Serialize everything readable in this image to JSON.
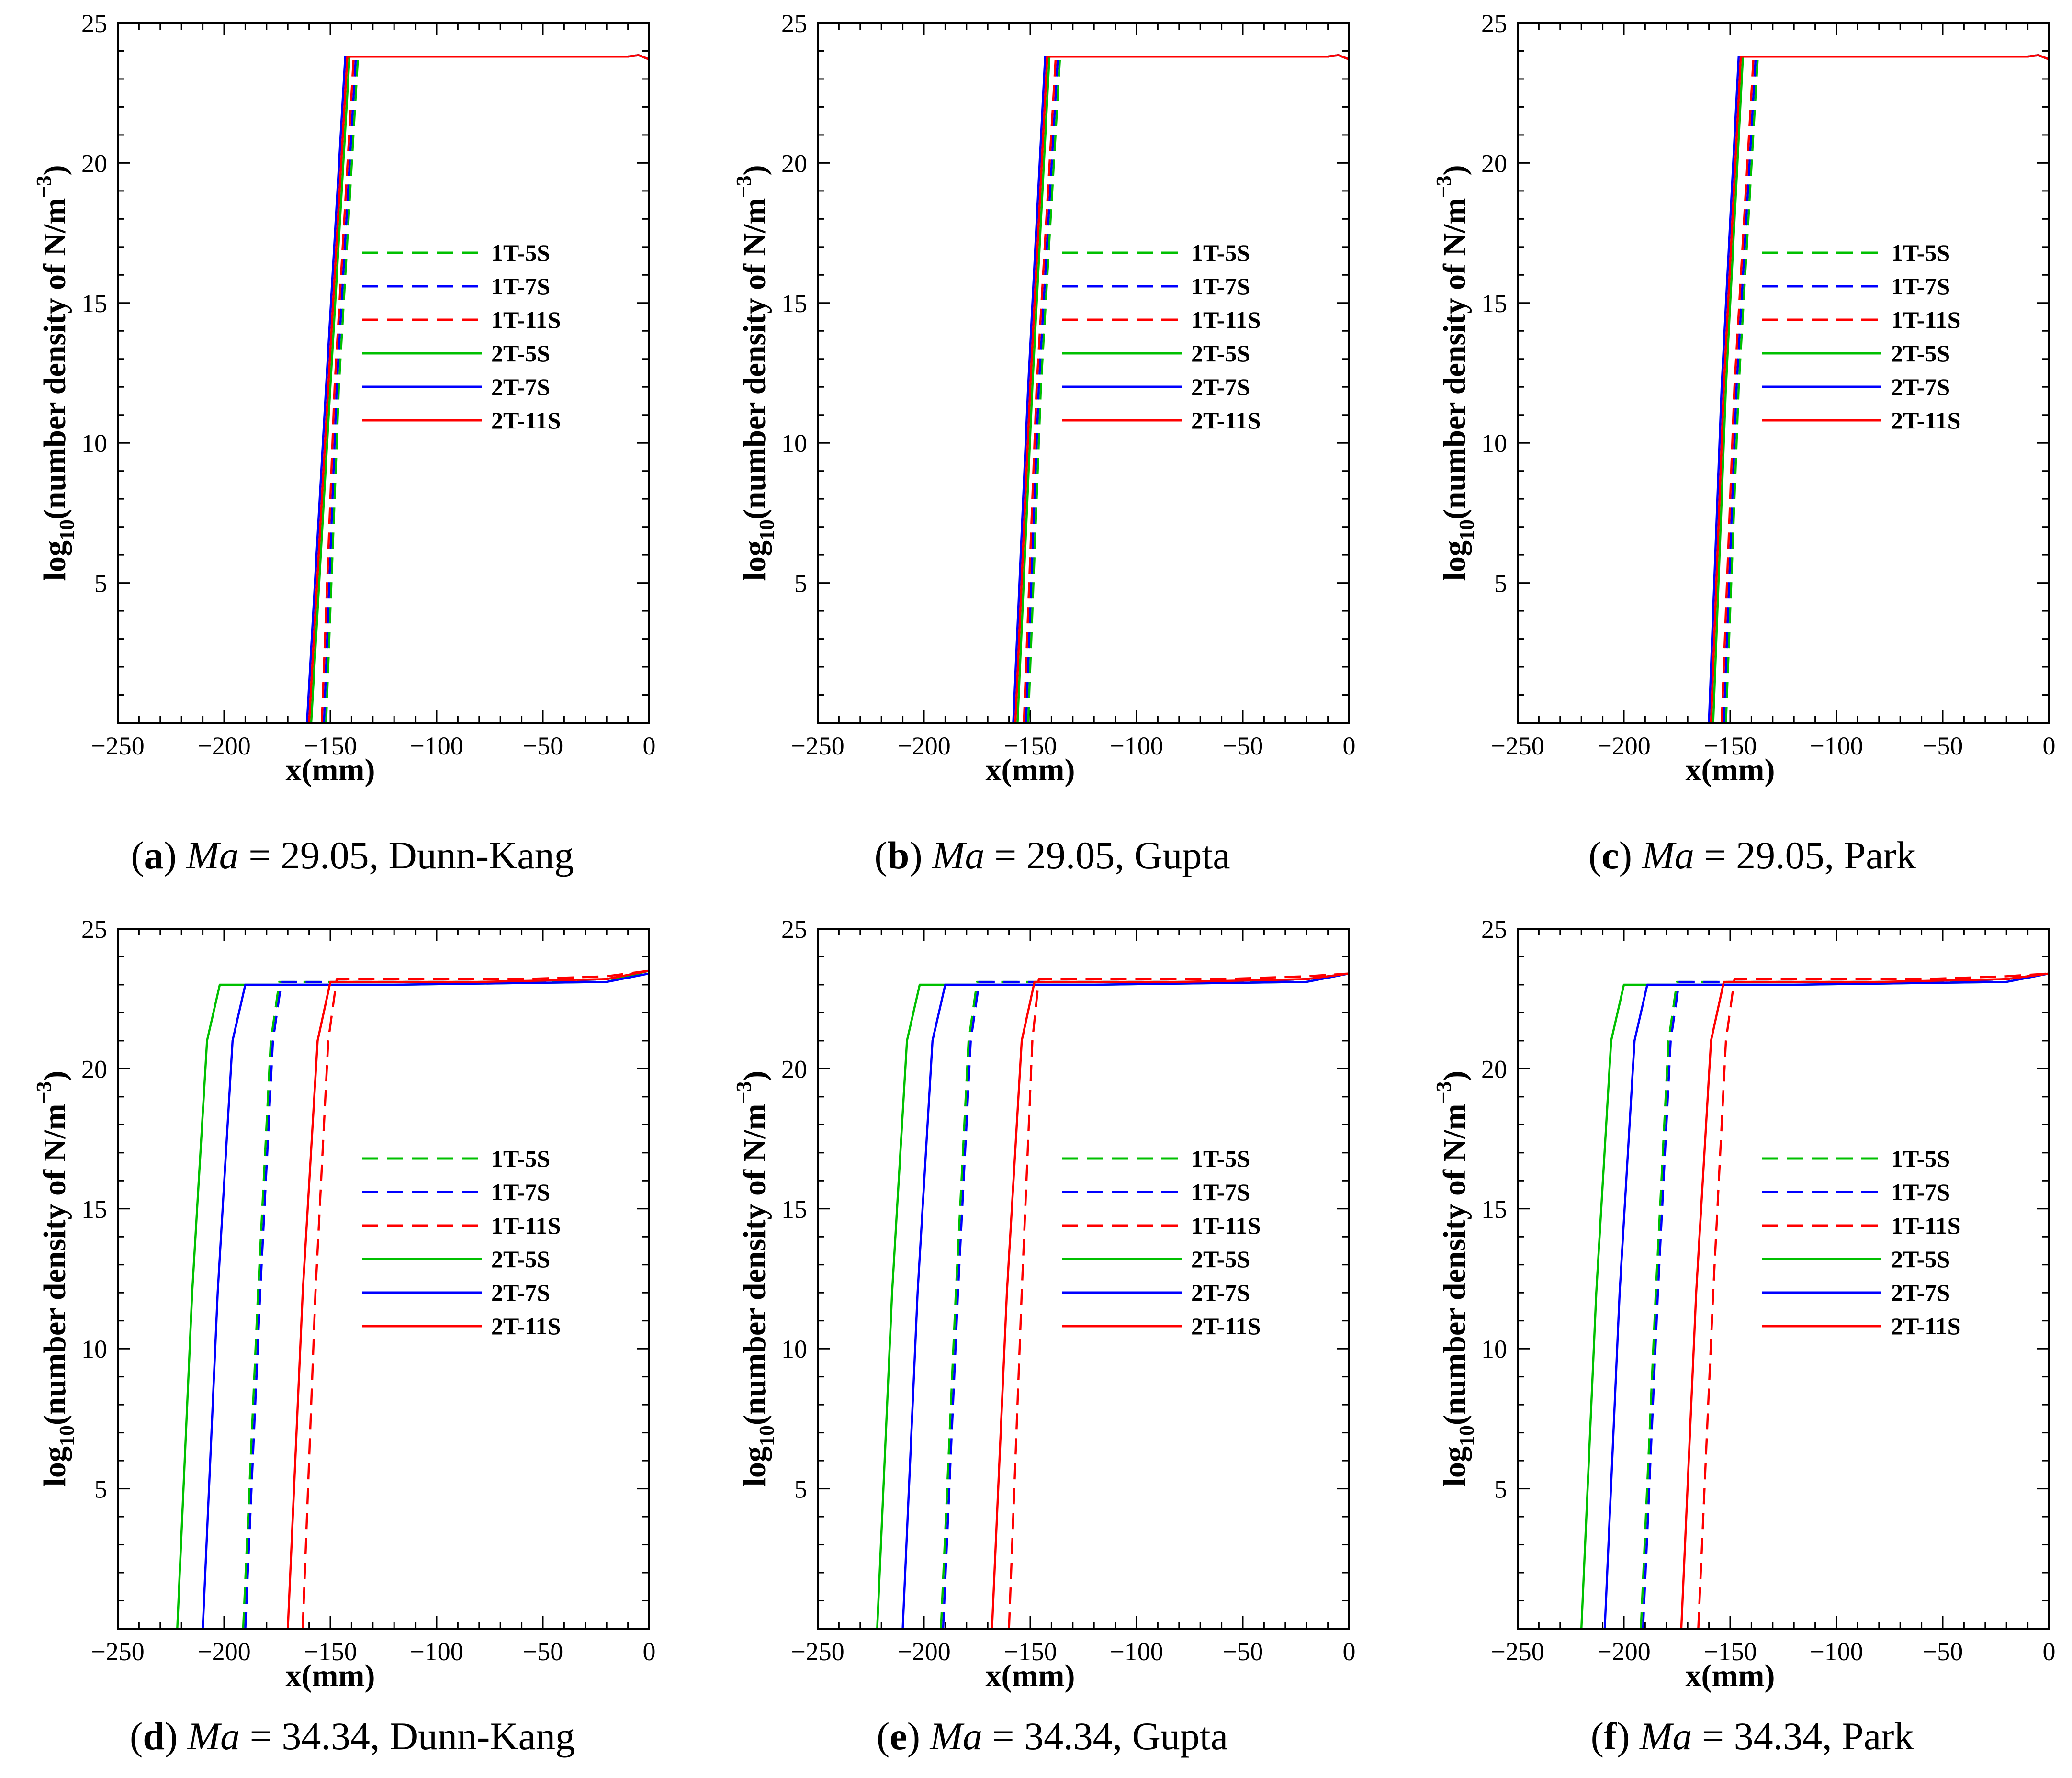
{
  "legend_labels": [
    "1T-5S",
    "1T-7S",
    "1T-11S",
    "2T-5S",
    "2T-7S",
    "2T-11S"
  ],
  "series_styles": [
    {
      "name": "1T-5S",
      "color": "#00c000",
      "dash": true
    },
    {
      "name": "1T-7S",
      "color": "#0000ff",
      "dash": true
    },
    {
      "name": "1T-11S",
      "color": "#ff0000",
      "dash": true
    },
    {
      "name": "2T-5S",
      "color": "#00c000",
      "dash": false
    },
    {
      "name": "2T-7S",
      "color": "#0000ff",
      "dash": false
    },
    {
      "name": "2T-11S",
      "color": "#ff0000",
      "dash": false
    }
  ],
  "chart_data": [
    {
      "type": "line",
      "caption": {
        "letter": "a",
        "mach": "29.05",
        "model": "Dunn-Kang"
      },
      "xlabel": "x(mm)",
      "ylabel": "log10(number density of N/m-3)",
      "xlim": [
        -250,
        0
      ],
      "ylim": [
        0,
        25
      ],
      "xticks": [
        "−250",
        "−200",
        "−150",
        "−100",
        "−50",
        "0"
      ],
      "yticks": [
        "5",
        "10",
        "15",
        "20",
        "25"
      ],
      "series": [
        {
          "name": "1T-5S",
          "x": [
            -152,
            -146,
            -137,
            -120,
            -60,
            -10,
            -5,
            0
          ],
          "y": [
            0,
            12,
            23.8,
            23.8,
            23.8,
            23.8,
            23.85,
            23.7
          ]
        },
        {
          "name": "1T-7S",
          "x": [
            -153,
            -147,
            -138,
            -120,
            -60,
            -10,
            -5,
            0
          ],
          "y": [
            0,
            12,
            23.8,
            23.8,
            23.8,
            23.8,
            23.85,
            23.7
          ]
        },
        {
          "name": "1T-11S",
          "x": [
            -154,
            -148,
            -139,
            -120,
            -60,
            -10,
            -5,
            0
          ],
          "y": [
            0,
            12,
            23.8,
            23.8,
            23.8,
            23.8,
            23.85,
            23.7
          ]
        },
        {
          "name": "2T-5S",
          "x": [
            -159,
            -150,
            -141,
            -120,
            -60,
            -10,
            -5,
            0
          ],
          "y": [
            0,
            12,
            23.8,
            23.8,
            23.8,
            23.8,
            23.85,
            23.7
          ]
        },
        {
          "name": "2T-7S",
          "x": [
            -161,
            -152,
            -143,
            -120,
            -60,
            -10,
            -5,
            0
          ],
          "y": [
            0,
            12,
            23.8,
            23.8,
            23.8,
            23.8,
            23.85,
            23.7
          ]
        },
        {
          "name": "2T-11S",
          "x": [
            -160,
            -151,
            -142,
            -120,
            -60,
            -10,
            -5,
            0
          ],
          "y": [
            0,
            12,
            23.8,
            23.8,
            23.8,
            23.8,
            23.85,
            23.7
          ]
        }
      ]
    },
    {
      "type": "line",
      "caption": {
        "letter": "b",
        "mach": "29.05",
        "model": "Gupta"
      },
      "xlabel": "x(mm)",
      "ylabel": "log10(number density of N/m-3)",
      "xlim": [
        -250,
        0
      ],
      "ylim": [
        0,
        25
      ],
      "xticks": [
        "−250",
        "−200",
        "−150",
        "−100",
        "−50",
        "0"
      ],
      "yticks": [
        "5",
        "10",
        "15",
        "20",
        "25"
      ],
      "series": [
        {
          "name": "1T-5S",
          "x": [
            -151,
            -145,
            -136,
            -120,
            -60,
            -10,
            -5,
            0
          ],
          "y": [
            0,
            12,
            23.8,
            23.8,
            23.8,
            23.8,
            23.85,
            23.7
          ]
        },
        {
          "name": "1T-7S",
          "x": [
            -152,
            -146,
            -137,
            -120,
            -60,
            -10,
            -5,
            0
          ],
          "y": [
            0,
            12,
            23.8,
            23.8,
            23.8,
            23.8,
            23.85,
            23.7
          ]
        },
        {
          "name": "1T-11S",
          "x": [
            -153,
            -147,
            -138,
            -120,
            -60,
            -10,
            -5,
            0
          ],
          "y": [
            0,
            12,
            23.8,
            23.8,
            23.8,
            23.8,
            23.85,
            23.7
          ]
        },
        {
          "name": "2T-5S",
          "x": [
            -156,
            -149,
            -141,
            -120,
            -60,
            -10,
            -5,
            0
          ],
          "y": [
            0,
            12,
            23.8,
            23.8,
            23.8,
            23.8,
            23.85,
            23.7
          ]
        },
        {
          "name": "2T-7S",
          "x": [
            -158,
            -151,
            -143,
            -120,
            -60,
            -10,
            -5,
            0
          ],
          "y": [
            0,
            12,
            23.8,
            23.8,
            23.8,
            23.8,
            23.85,
            23.7
          ]
        },
        {
          "name": "2T-11S",
          "x": [
            -157,
            -150,
            -142,
            -120,
            -60,
            -10,
            -5,
            0
          ],
          "y": [
            0,
            12,
            23.8,
            23.8,
            23.8,
            23.8,
            23.85,
            23.7
          ]
        }
      ]
    },
    {
      "type": "line",
      "caption": {
        "letter": "c",
        "mach": "29.05",
        "model": "Park"
      },
      "xlabel": "x(mm)",
      "ylabel": "log10(number density of N/m-3)",
      "xlim": [
        -250,
        0
      ],
      "ylim": [
        0,
        25
      ],
      "xticks": [
        "−250",
        "−200",
        "−150",
        "−100",
        "−50",
        "0"
      ],
      "yticks": [
        "5",
        "10",
        "15",
        "20",
        "25"
      ],
      "series": [
        {
          "name": "1T-5S",
          "x": [
            -152,
            -146,
            -137,
            -120,
            -60,
            -10,
            -5,
            0
          ],
          "y": [
            0,
            12,
            23.8,
            23.8,
            23.8,
            23.8,
            23.85,
            23.7
          ]
        },
        {
          "name": "1T-7S",
          "x": [
            -153,
            -147,
            -138,
            -120,
            -60,
            -10,
            -5,
            0
          ],
          "y": [
            0,
            12,
            23.8,
            23.8,
            23.8,
            23.8,
            23.85,
            23.7
          ]
        },
        {
          "name": "1T-11S",
          "x": [
            -154,
            -148,
            -139,
            -120,
            -60,
            -10,
            -5,
            0
          ],
          "y": [
            0,
            12,
            23.8,
            23.8,
            23.8,
            23.8,
            23.85,
            23.7
          ]
        },
        {
          "name": "2T-5S",
          "x": [
            -158,
            -152,
            -144,
            -120,
            -60,
            -10,
            -5,
            0
          ],
          "y": [
            0,
            12,
            23.8,
            23.8,
            23.8,
            23.8,
            23.85,
            23.7
          ]
        },
        {
          "name": "2T-7S",
          "x": [
            -160,
            -154,
            -146,
            -120,
            -60,
            -10,
            -5,
            0
          ],
          "y": [
            0,
            12,
            23.8,
            23.8,
            23.8,
            23.8,
            23.85,
            23.7
          ]
        },
        {
          "name": "2T-11S",
          "x": [
            -159,
            -153,
            -145,
            -120,
            -60,
            -10,
            -5,
            0
          ],
          "y": [
            0,
            12,
            23.8,
            23.8,
            23.8,
            23.8,
            23.85,
            23.7
          ]
        }
      ]
    },
    {
      "type": "line",
      "caption": {
        "letter": "d",
        "mach": "34.34",
        "model": "Dunn-Kang"
      },
      "xlabel": "x(mm)",
      "ylabel": "log10(number density of N/m-3)",
      "xlim": [
        -250,
        0
      ],
      "ylim": [
        0,
        25
      ],
      "xticks": [
        "−250",
        "−200",
        "−150",
        "−100",
        "−50",
        "0"
      ],
      "yticks": [
        "5",
        "10",
        "15",
        "20",
        "25"
      ],
      "series": [
        {
          "name": "1T-5S",
          "x": [
            -191,
            -184,
            -178,
            -174,
            -120,
            -60,
            -20,
            0
          ],
          "y": [
            0,
            12,
            21,
            23.1,
            23.1,
            23.1,
            23.2,
            23.5
          ]
        },
        {
          "name": "1T-7S",
          "x": [
            -190,
            -183,
            -177,
            -173,
            -120,
            -60,
            -20,
            0
          ],
          "y": [
            0,
            12,
            21,
            23.1,
            23.1,
            23.1,
            23.2,
            23.5
          ]
        },
        {
          "name": "1T-11S",
          "x": [
            -163,
            -157,
            -151,
            -147,
            -120,
            -60,
            -20,
            0
          ],
          "y": [
            0,
            12,
            21,
            23.2,
            23.2,
            23.2,
            23.3,
            23.5
          ]
        },
        {
          "name": "2T-5S",
          "x": [
            -222,
            -215,
            -208,
            -202,
            -190,
            -120,
            -20,
            0
          ],
          "y": [
            0,
            12,
            21,
            23.0,
            23.0,
            23.0,
            23.1,
            23.5
          ]
        },
        {
          "name": "2T-7S",
          "x": [
            -210,
            -203,
            -196,
            -190,
            -170,
            -120,
            -20,
            0
          ],
          "y": [
            0,
            12,
            21,
            23.0,
            23.0,
            23.0,
            23.1,
            23.4
          ]
        },
        {
          "name": "2T-11S",
          "x": [
            -170,
            -163,
            -156,
            -150,
            -130,
            -80,
            -20,
            0
          ],
          "y": [
            0,
            12,
            21,
            23.1,
            23.1,
            23.1,
            23.2,
            23.5
          ]
        }
      ]
    },
    {
      "type": "line",
      "caption": {
        "letter": "e",
        "mach": "34.34",
        "model": "Gupta"
      },
      "xlabel": "x(mm)",
      "ylabel": "log10(number density of N/m-3)",
      "xlim": [
        -250,
        0
      ],
      "ylim": [
        0,
        25
      ],
      "xticks": [
        "−250",
        "−200",
        "−150",
        "−100",
        "−50",
        "0"
      ],
      "yticks": [
        "5",
        "10",
        "15",
        "20",
        "25"
      ],
      "series": [
        {
          "name": "1T-5S",
          "x": [
            -192,
            -185,
            -179,
            -175,
            -120,
            -60,
            -20,
            0
          ],
          "y": [
            0,
            12,
            21,
            23.1,
            23.1,
            23.1,
            23.2,
            23.4
          ]
        },
        {
          "name": "1T-7S",
          "x": [
            -191,
            -184,
            -178,
            -174,
            -120,
            -60,
            -20,
            0
          ],
          "y": [
            0,
            12,
            21,
            23.1,
            23.1,
            23.1,
            23.2,
            23.4
          ]
        },
        {
          "name": "1T-11S",
          "x": [
            -160,
            -154,
            -149,
            -146,
            -120,
            -60,
            -20,
            0
          ],
          "y": [
            0,
            12,
            21,
            23.2,
            23.2,
            23.2,
            23.3,
            23.4
          ]
        },
        {
          "name": "2T-5S",
          "x": [
            -222,
            -215,
            -208,
            -202,
            -190,
            -120,
            -20,
            0
          ],
          "y": [
            0,
            12,
            21,
            23.0,
            23.0,
            23.0,
            23.1,
            23.4
          ]
        },
        {
          "name": "2T-7S",
          "x": [
            -210,
            -203,
            -196,
            -190,
            -170,
            -120,
            -20,
            0
          ],
          "y": [
            0,
            12,
            21,
            23.0,
            23.0,
            23.0,
            23.1,
            23.4
          ]
        },
        {
          "name": "2T-11S",
          "x": [
            -168,
            -161,
            -154,
            -148,
            -130,
            -80,
            -20,
            0
          ],
          "y": [
            0,
            12,
            21,
            23.1,
            23.1,
            23.1,
            23.2,
            23.4
          ]
        }
      ]
    },
    {
      "type": "line",
      "caption": {
        "letter": "f",
        "mach": "34.34",
        "model": "Park"
      },
      "xlabel": "x(mm)",
      "ylabel": "log10(number density of N/m-3)",
      "xlim": [
        -250,
        0
      ],
      "ylim": [
        0,
        25
      ],
      "xticks": [
        "−250",
        "−200",
        "−150",
        "−100",
        "−50",
        "0"
      ],
      "yticks": [
        "5",
        "10",
        "15",
        "20",
        "25"
      ],
      "series": [
        {
          "name": "1T-5S",
          "x": [
            -192,
            -185,
            -179,
            -175,
            -120,
            -60,
            -20,
            0
          ],
          "y": [
            0,
            12,
            21,
            23.1,
            23.1,
            23.1,
            23.2,
            23.4
          ]
        },
        {
          "name": "1T-7S",
          "x": [
            -191,
            -184,
            -178,
            -174,
            -120,
            -60,
            -20,
            0
          ],
          "y": [
            0,
            12,
            21,
            23.1,
            23.1,
            23.1,
            23.2,
            23.4
          ]
        },
        {
          "name": "1T-11S",
          "x": [
            -165,
            -158,
            -152,
            -148,
            -120,
            -60,
            -20,
            0
          ],
          "y": [
            0,
            12,
            21,
            23.2,
            23.2,
            23.2,
            23.3,
            23.4
          ]
        },
        {
          "name": "2T-5S",
          "x": [
            -220,
            -213,
            -206,
            -200,
            -190,
            -120,
            -20,
            0
          ],
          "y": [
            0,
            12,
            21,
            23.0,
            23.0,
            23.0,
            23.1,
            23.4
          ]
        },
        {
          "name": "2T-7S",
          "x": [
            -209,
            -202,
            -195,
            -189,
            -170,
            -120,
            -20,
            0
          ],
          "y": [
            0,
            12,
            21,
            23.0,
            23.0,
            23.0,
            23.1,
            23.4
          ]
        },
        {
          "name": "2T-11S",
          "x": [
            -173,
            -166,
            -159,
            -153,
            -130,
            -80,
            -20,
            0
          ],
          "y": [
            0,
            12,
            21,
            23.1,
            23.1,
            23.1,
            23.2,
            23.4
          ]
        }
      ]
    }
  ]
}
